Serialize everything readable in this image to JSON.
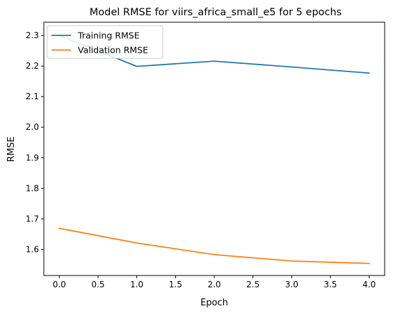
{
  "chart_data": {
    "type": "line",
    "title": "Model RMSE for viirs_africa_small_e5 for 5 epochs",
    "xlabel": "Epoch",
    "ylabel": "RMSE",
    "x": [
      0,
      1,
      2,
      3,
      4
    ],
    "xlim": [
      -0.2,
      4.2
    ],
    "ylim": [
      1.5145,
      2.3435
    ],
    "xticks": [
      0.0,
      0.5,
      1.0,
      1.5,
      2.0,
      2.5,
      3.0,
      3.5,
      4.0
    ],
    "xtick_labels": [
      "0.0",
      "0.5",
      "1.0",
      "1.5",
      "2.0",
      "2.5",
      "3.0",
      "3.5",
      "4.0"
    ],
    "yticks": [
      1.6,
      1.7,
      1.8,
      1.9,
      2.0,
      2.1,
      2.2,
      2.3
    ],
    "ytick_labels": [
      "1.6",
      "1.7",
      "1.8",
      "1.9",
      "2.0",
      "2.1",
      "2.2",
      "2.3"
    ],
    "grid": false,
    "legend_position": "top-left",
    "series": [
      {
        "name": "Training RMSE",
        "color": "#1f77b4",
        "values": [
          2.3,
          2.199,
          2.216,
          2.197,
          2.177
        ]
      },
      {
        "name": "Validation RMSE",
        "color": "#ff7f0e",
        "values": [
          1.669,
          1.621,
          1.583,
          1.562,
          1.554
        ]
      }
    ]
  }
}
